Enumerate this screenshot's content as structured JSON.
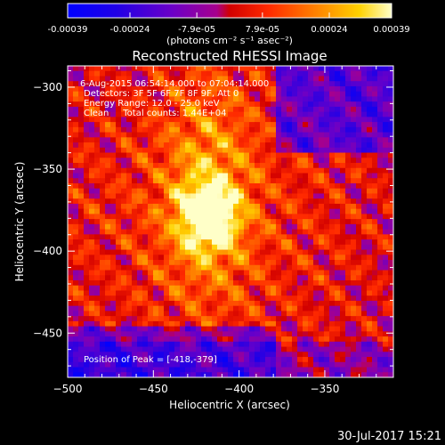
{
  "chart_data": {
    "type": "heatmap",
    "title": "Reconstructed RHESSI Image",
    "xlabel": "Heliocentric X (arcsec)",
    "ylabel": "Heliocentric Y (arcsec)",
    "xlim": [
      -500,
      -310
    ],
    "ylim": [
      -477,
      -287
    ],
    "x_ticks": [
      -500,
      -450,
      -400,
      -350
    ],
    "y_ticks": [
      -300,
      -350,
      -400,
      -450
    ],
    "colorbar": {
      "range": [
        -0.00039,
        0.00039
      ],
      "tick_values": [
        -0.00039,
        -0.00024,
        -7.9e-05,
        7.9e-05,
        0.00024,
        0.00039
      ],
      "tick_labels": [
        "-0.00039",
        "-0.00024",
        "-7.9e-05",
        "7.9e-05",
        "0.00024",
        "0.00039"
      ],
      "unit_label": "(photons cm⁻² s⁻¹ asec⁻²)"
    },
    "annotations": [
      "6-Aug-2015 06:54:14.000 to 07:04:14.000",
      "Detectors: 3F 5F 6F 7F 8F 9F, Att 0",
      "Energy Range: 12.0 - 25.0 keV",
      "Clean     Total counts: 1.44E+04"
    ],
    "peak_label": "Position of Peak = [-418,-379]",
    "peak": {
      "x": -418,
      "y": -379
    }
  },
  "footer_timestamp": "30-Jul-2017 15:21",
  "colors": {
    "background": "#000000",
    "text": "#ffffff"
  }
}
